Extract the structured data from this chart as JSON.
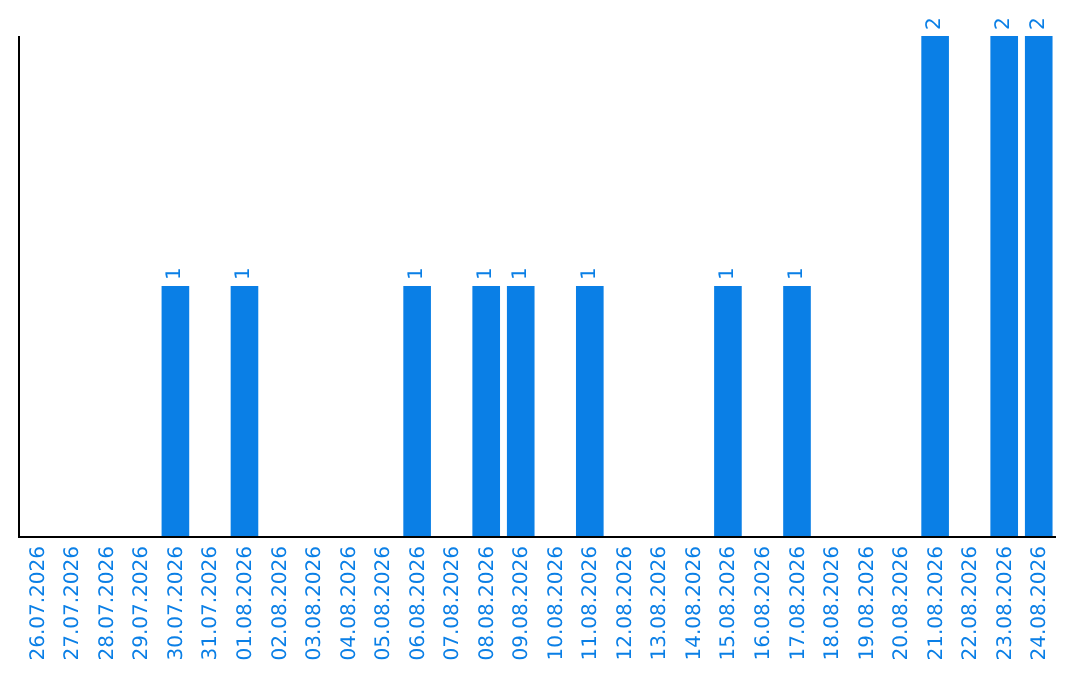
{
  "chart_data": {
    "type": "bar",
    "categories": [
      "26.07.2026",
      "27.07.2026",
      "28.07.2026",
      "29.07.2026",
      "30.07.2026",
      "31.07.2026",
      "01.08.2026",
      "02.08.2026",
      "03.08.2026",
      "04.08.2026",
      "05.08.2026",
      "06.08.2026",
      "07.08.2026",
      "08.08.2026",
      "09.08.2026",
      "10.08.2026",
      "11.08.2026",
      "12.08.2026",
      "13.08.2026",
      "14.08.2026",
      "15.08.2026",
      "16.08.2026",
      "17.08.2026",
      "18.08.2026",
      "19.08.2026",
      "20.08.2026",
      "21.08.2026",
      "22.08.2026",
      "23.08.2026",
      "24.08.2026"
    ],
    "values": [
      0,
      0,
      0,
      0,
      1,
      0,
      1,
      0,
      0,
      0,
      0,
      1,
      0,
      1,
      1,
      0,
      1,
      0,
      0,
      0,
      1,
      0,
      1,
      0,
      0,
      0,
      2,
      0,
      2,
      2
    ],
    "value_labels": [
      null,
      null,
      null,
      null,
      "1",
      null,
      "1",
      null,
      null,
      null,
      null,
      "1",
      null,
      "1",
      "1",
      null,
      "1",
      null,
      null,
      null,
      "1",
      null,
      "1",
      null,
      null,
      null,
      "2",
      null,
      "2",
      "2"
    ],
    "color": "#0a7fe6",
    "tick_labels": "x"
  }
}
